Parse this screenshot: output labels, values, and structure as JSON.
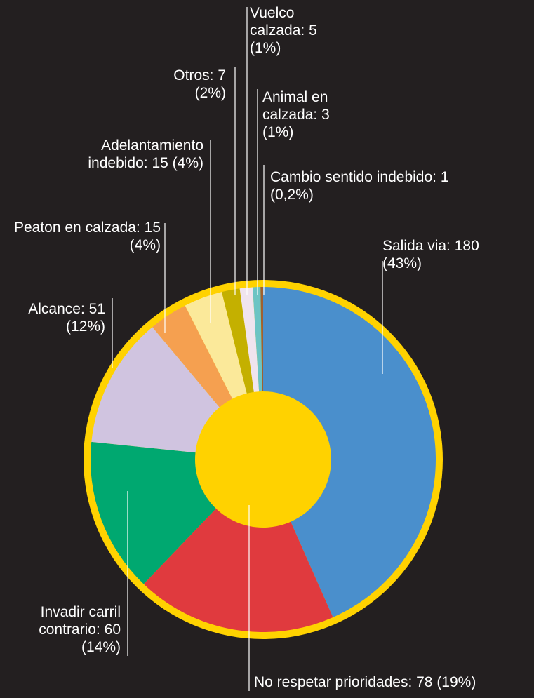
{
  "chart_data": {
    "type": "donut",
    "categories": [
      "Salida via:",
      "No respetar prioridades:",
      "Invadir carril contrario:",
      "Alcance:",
      "Peaton en calzada:",
      "Adelantamiento indebido:",
      "Otros:",
      "Vuelco calzada:",
      "Animal en calzada:",
      "Cambio sentido indebido:"
    ],
    "values": [
      180,
      78,
      60,
      51,
      15,
      15,
      7,
      5,
      3,
      1
    ],
    "value_labels": [
      "180 (43%)",
      "78 (19%)",
      "60 (14%)",
      "51 (12%)",
      "15 (4%)",
      "15 (4%)",
      "7 (2%)",
      "5 (1%)",
      "3 (1%)",
      "1 (0,2%)"
    ],
    "colors": [
      "#4a8fcc",
      "#e03a3e",
      "#00a870",
      "#d0c4e0",
      "#f5a050",
      "#fbe99a",
      "#c4b000",
      "#f0e4ee",
      "#6cc4c4",
      "#a06030"
    ]
  }
}
